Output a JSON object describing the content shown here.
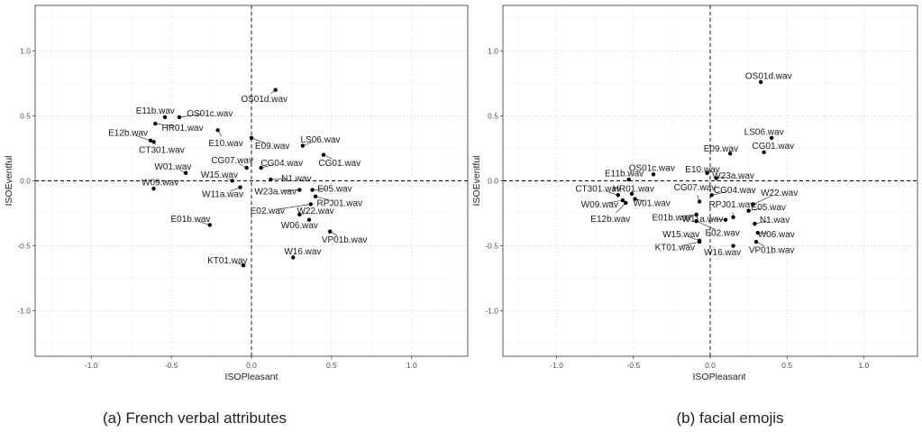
{
  "chart_data": [
    {
      "type": "scatter",
      "caption": "(a) French verbal attributes",
      "xlabel": "ISOPleasant",
      "ylabel": "ISOEventful",
      "xlim": [
        -1.35,
        1.35
      ],
      "ylim": [
        -1.35,
        1.35
      ],
      "xticks": [
        -1.0,
        -0.5,
        0.0,
        0.5,
        1.0
      ],
      "yticks": [
        -1.0,
        -0.5,
        0.0,
        0.5,
        1.0
      ],
      "xtick_labels": [
        "-1.0",
        "-0.5",
        "0.0",
        "0.5",
        "1.0"
      ],
      "ytick_labels": [
        "-1.0",
        "-0.5",
        "0.0",
        "0.5",
        "1.0"
      ],
      "grid": true,
      "reference_lines": [
        0,
        0
      ],
      "points": [
        {
          "label": "OS01d.wav",
          "x": 0.15,
          "y": 0.7,
          "lx": 0.08,
          "ly": 0.63
        },
        {
          "label": "E11b.wav",
          "x": -0.54,
          "y": 0.49,
          "lx": -0.6,
          "ly": 0.54
        },
        {
          "label": "OS01c.wav",
          "x": -0.45,
          "y": 0.49,
          "lx": -0.26,
          "ly": 0.52
        },
        {
          "label": "HR01.wav",
          "x": -0.6,
          "y": 0.44,
          "lx": -0.43,
          "ly": 0.41
        },
        {
          "label": "E12b.wav",
          "x": -0.61,
          "y": 0.3,
          "lx": -0.77,
          "ly": 0.37
        },
        {
          "label": "E10.wav",
          "x": -0.21,
          "y": 0.39,
          "lx": -0.16,
          "ly": 0.29
        },
        {
          "label": "E09.wav",
          "x": 0.0,
          "y": 0.33,
          "lx": 0.13,
          "ly": 0.27
        },
        {
          "label": "LS06.wav",
          "x": 0.32,
          "y": 0.27,
          "lx": 0.43,
          "ly": 0.32
        },
        {
          "label": "CT301.wav",
          "x": -0.63,
          "y": 0.31,
          "lx": -0.56,
          "ly": 0.24
        },
        {
          "label": "CG07.wav",
          "x": -0.03,
          "y": 0.1,
          "lx": -0.12,
          "ly": 0.16
        },
        {
          "label": "CG04.wav",
          "x": 0.06,
          "y": 0.1,
          "lx": 0.19,
          "ly": 0.14
        },
        {
          "label": "CG01.wav",
          "x": 0.45,
          "y": 0.2,
          "lx": 0.55,
          "ly": 0.14
        },
        {
          "label": "W01.wav",
          "x": -0.41,
          "y": 0.06,
          "lx": -0.49,
          "ly": 0.11
        },
        {
          "label": "W15.wav",
          "x": -0.12,
          "y": 0.0,
          "lx": -0.2,
          "ly": 0.05
        },
        {
          "label": "N1.wav",
          "x": 0.12,
          "y": 0.01,
          "lx": 0.28,
          "ly": 0.02
        },
        {
          "label": "W09.wav",
          "x": -0.61,
          "y": -0.06,
          "lx": -0.57,
          "ly": -0.01
        },
        {
          "label": "E05.wav",
          "x": 0.38,
          "y": -0.07,
          "lx": 0.52,
          "ly": -0.06
        },
        {
          "label": "W11a.wav",
          "x": -0.07,
          "y": -0.05,
          "lx": -0.18,
          "ly": -0.1
        },
        {
          "label": "W23a.wav",
          "x": 0.3,
          "y": -0.07,
          "lx": 0.15,
          "ly": -0.08
        },
        {
          "label": "RPJ01.wav",
          "x": 0.4,
          "y": -0.12,
          "lx": 0.55,
          "ly": -0.17
        },
        {
          "label": "E02.wav",
          "x": 0.37,
          "y": -0.18,
          "lx": 0.1,
          "ly": -0.23
        },
        {
          "label": "W22.wav",
          "x": 0.3,
          "y": -0.26,
          "lx": 0.4,
          "ly": -0.23
        },
        {
          "label": "W06.wav",
          "x": 0.36,
          "y": -0.3,
          "lx": 0.3,
          "ly": -0.34
        },
        {
          "label": "E01b.wav",
          "x": -0.26,
          "y": -0.34,
          "lx": -0.38,
          "ly": -0.29
        },
        {
          "label": "VP01b.wav",
          "x": 0.49,
          "y": -0.39,
          "lx": 0.58,
          "ly": -0.45
        },
        {
          "label": "W16.wav",
          "x": 0.26,
          "y": -0.59,
          "lx": 0.32,
          "ly": -0.54
        },
        {
          "label": "KT01.wav",
          "x": -0.05,
          "y": -0.65,
          "lx": -0.15,
          "ly": -0.61
        }
      ]
    },
    {
      "type": "scatter",
      "caption": "(b) facial emojis",
      "xlabel": "ISOPleasant",
      "ylabel": "ISOEventful",
      "xlim": [
        -1.35,
        1.35
      ],
      "ylim": [
        -1.35,
        1.35
      ],
      "xticks": [
        -1.0,
        -0.5,
        0.0,
        0.5,
        1.0
      ],
      "yticks": [
        -1.0,
        -0.5,
        0.0,
        0.5,
        1.0
      ],
      "xtick_labels": [
        "-1.0",
        "-0.5",
        "0.0",
        "0.5",
        "1.0"
      ],
      "ytick_labels": [
        "-1.0",
        "-0.5",
        "0.0",
        "0.5",
        "1.0"
      ],
      "grid": true,
      "reference_lines": [
        0,
        0
      ],
      "points": [
        {
          "label": "OS01d.wav",
          "x": 0.33,
          "y": 0.76,
          "lx": 0.38,
          "ly": 0.81
        },
        {
          "label": "LS06.wav",
          "x": 0.4,
          "y": 0.33,
          "lx": 0.35,
          "ly": 0.38
        },
        {
          "label": "E09.wav",
          "x": 0.13,
          "y": 0.21,
          "lx": 0.07,
          "ly": 0.25
        },
        {
          "label": "CG01.wav",
          "x": 0.35,
          "y": 0.22,
          "lx": 0.41,
          "ly": 0.27
        },
        {
          "label": "E10.wav",
          "x": -0.02,
          "y": 0.06,
          "lx": -0.05,
          "ly": 0.09
        },
        {
          "label": "OS01c.wav",
          "x": -0.37,
          "y": 0.05,
          "lx": -0.38,
          "ly": 0.1
        },
        {
          "label": "W23a.wav",
          "x": 0.04,
          "y": 0.02,
          "lx": 0.15,
          "ly": 0.04
        },
        {
          "label": "E11b.wav",
          "x": -0.53,
          "y": 0.01,
          "lx": -0.56,
          "ly": 0.06
        },
        {
          "label": "CT301.wav",
          "x": -0.6,
          "y": -0.11,
          "lx": -0.73,
          "ly": -0.06
        },
        {
          "label": "HR01.wav",
          "x": -0.51,
          "y": -0.1,
          "lx": -0.5,
          "ly": -0.06
        },
        {
          "label": "CG07.wav",
          "x": -0.07,
          "y": -0.16,
          "lx": -0.1,
          "ly": -0.05
        },
        {
          "label": "CG04.wav",
          "x": 0.01,
          "y": -0.11,
          "lx": 0.16,
          "ly": -0.07
        },
        {
          "label": "W22.wav",
          "x": 0.28,
          "y": -0.18,
          "lx": 0.45,
          "ly": -0.09
        },
        {
          "label": "W09.wav",
          "x": -0.57,
          "y": -0.15,
          "lx": -0.72,
          "ly": -0.18
        },
        {
          "label": "W01.wav",
          "x": -0.49,
          "y": -0.14,
          "lx": -0.38,
          "ly": -0.17
        },
        {
          "label": "RPJ01.wav",
          "x": 0.15,
          "y": -0.28,
          "lx": 0.14,
          "ly": -0.18
        },
        {
          "label": "E05.wav",
          "x": 0.25,
          "y": -0.23,
          "lx": 0.38,
          "ly": -0.2
        },
        {
          "label": "E12b.wav",
          "x": -0.55,
          "y": -0.17,
          "lx": -0.65,
          "ly": -0.29
        },
        {
          "label": "E01b.wav",
          "x": -0.09,
          "y": -0.26,
          "lx": -0.25,
          "ly": -0.28
        },
        {
          "label": "W11a.wav",
          "x": 0.1,
          "y": -0.3,
          "lx": -0.05,
          "ly": -0.29
        },
        {
          "label": "N1.wav",
          "x": 0.29,
          "y": -0.33,
          "lx": 0.42,
          "ly": -0.3
        },
        {
          "label": "E02.wav",
          "x": -0.09,
          "y": -0.31,
          "lx": 0.08,
          "ly": -0.4
        },
        {
          "label": "W06.wav",
          "x": 0.31,
          "y": -0.4,
          "lx": 0.43,
          "ly": -0.41
        },
        {
          "label": "W15.wav",
          "x": -0.07,
          "y": -0.46,
          "lx": -0.19,
          "ly": -0.41
        },
        {
          "label": "KT01.wav",
          "x": -0.07,
          "y": -0.47,
          "lx": -0.23,
          "ly": -0.51
        },
        {
          "label": "VP01b.wav",
          "x": 0.3,
          "y": -0.47,
          "lx": 0.4,
          "ly": -0.53
        },
        {
          "label": "W16.wav",
          "x": 0.15,
          "y": -0.5,
          "lx": 0.08,
          "ly": -0.55
        }
      ]
    }
  ]
}
